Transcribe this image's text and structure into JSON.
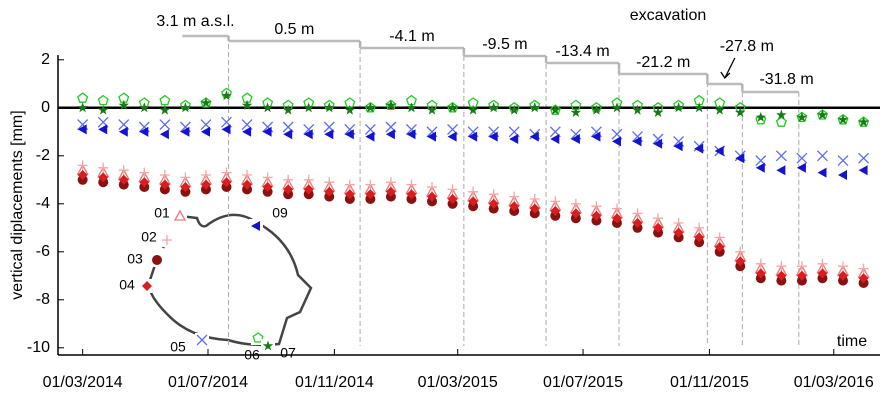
{
  "chart_data": {
    "type": "scatter",
    "x_label": "time",
    "y_label": "vertical diplacements [mm]",
    "annotation": "excavation",
    "reference_line": 0,
    "xlim": [
      "2014-02-05",
      "2016-04-15"
    ],
    "ylim": [
      -10.3,
      2.2
    ],
    "yticks": [
      2,
      0,
      -2,
      -4,
      -6,
      -8,
      -10
    ],
    "xticks": [
      {
        "value": "2014-03-01",
        "label": "01/03/2014"
      },
      {
        "value": "2014-07-01",
        "label": "01/07/2014"
      },
      {
        "value": "2014-11-01",
        "label": "01/11/2014"
      },
      {
        "value": "2015-03-01",
        "label": "01/03/2015"
      },
      {
        "value": "2015-07-01",
        "label": "01/07/2015"
      },
      {
        "value": "2015-11-01",
        "label": "01/11/2015"
      },
      {
        "value": "2016-03-01",
        "label": "01/03/2016"
      }
    ],
    "stages": [
      {
        "label": "3.1 m a.s.l.",
        "start": "2014-06-06",
        "end": "2014-07-21"
      },
      {
        "label": "0.5 m",
        "start": "2014-07-21",
        "end": "2014-11-26"
      },
      {
        "label": "-4.1 m",
        "start": "2014-11-26",
        "end": "2015-03-07"
      },
      {
        "label": "-9.5 m",
        "start": "2015-03-07",
        "end": "2015-05-26"
      },
      {
        "label": "-13.4 m",
        "start": "2015-05-26",
        "end": "2015-08-05"
      },
      {
        "label": "-21.2 m",
        "start": "2015-08-05",
        "end": "2015-10-30"
      },
      {
        "label": "-27.8 m",
        "start": "2015-10-30",
        "end": "2015-12-03"
      },
      {
        "label": "-31.8 m",
        "start": "2015-12-03",
        "end": "2016-01-27"
      }
    ],
    "x": [
      "2014-03-01",
      "2014-03-21",
      "2014-04-10",
      "2014-04-30",
      "2014-05-20",
      "2014-06-09",
      "2014-06-29",
      "2014-07-19",
      "2014-08-08",
      "2014-08-28",
      "2014-09-17",
      "2014-10-07",
      "2014-10-27",
      "2014-11-16",
      "2014-12-06",
      "2014-12-26",
      "2015-01-15",
      "2015-02-04",
      "2015-02-24",
      "2015-03-16",
      "2015-04-05",
      "2015-04-25",
      "2015-05-15",
      "2015-06-04",
      "2015-06-24",
      "2015-07-14",
      "2015-08-03",
      "2015-08-23",
      "2015-09-12",
      "2015-10-02",
      "2015-10-22",
      "2015-11-11",
      "2015-12-01",
      "2015-12-21",
      "2016-01-10",
      "2016-01-30",
      "2016-02-19",
      "2016-03-10",
      "2016-03-30"
    ],
    "series": [
      {
        "name": "01",
        "color": "#f07878",
        "marker": "triangle-open",
        "values": [
          -2.6,
          -2.7,
          -2.8,
          -2.9,
          -3.0,
          -3.1,
          -3.0,
          -2.9,
          -3.0,
          -3.1,
          -3.2,
          -3.2,
          -3.3,
          -3.4,
          -3.4,
          -3.3,
          -3.4,
          -3.5,
          -3.6,
          -3.7,
          -3.8,
          -3.9,
          -4.0,
          -4.1,
          -4.2,
          -4.3,
          -4.4,
          -4.6,
          -4.8,
          -5.0,
          -5.2,
          -5.6,
          -6.2,
          -6.7,
          -6.8,
          -6.8,
          -6.7,
          -6.8,
          -6.9
        ]
      },
      {
        "name": "02",
        "color": "#f5a5a5",
        "marker": "plus",
        "values": [
          -2.4,
          -2.5,
          -2.6,
          -2.7,
          -2.8,
          -2.9,
          -2.8,
          -2.7,
          -2.8,
          -2.9,
          -3.0,
          -3.0,
          -3.1,
          -3.2,
          -3.2,
          -3.1,
          -3.2,
          -3.3,
          -3.4,
          -3.5,
          -3.6,
          -3.7,
          -3.8,
          -3.9,
          -4.0,
          -4.1,
          -4.2,
          -4.4,
          -4.6,
          -4.8,
          -5.0,
          -5.4,
          -6.0,
          -6.5,
          -6.6,
          -6.6,
          -6.5,
          -6.6,
          -6.7
        ]
      },
      {
        "name": "03",
        "color": "#8b1010",
        "marker": "circle",
        "values": [
          -3.0,
          -3.1,
          -3.2,
          -3.3,
          -3.4,
          -3.5,
          -3.4,
          -3.3,
          -3.4,
          -3.5,
          -3.6,
          -3.6,
          -3.7,
          -3.8,
          -3.8,
          -3.7,
          -3.8,
          -3.9,
          -4.0,
          -4.1,
          -4.2,
          -4.3,
          -4.4,
          -4.5,
          -4.6,
          -4.7,
          -4.8,
          -5.0,
          -5.2,
          -5.4,
          -5.6,
          -6.0,
          -6.6,
          -7.1,
          -7.2,
          -7.2,
          -7.1,
          -7.2,
          -7.3
        ]
      },
      {
        "name": "04",
        "color": "#d81e1e",
        "marker": "diamond",
        "values": [
          -2.8,
          -2.9,
          -3.0,
          -3.1,
          -3.2,
          -3.3,
          -3.2,
          -3.1,
          -3.2,
          -3.3,
          -3.4,
          -3.4,
          -3.5,
          -3.6,
          -3.6,
          -3.5,
          -3.6,
          -3.7,
          -3.8,
          -3.9,
          -4.0,
          -4.1,
          -4.2,
          -4.3,
          -4.4,
          -4.5,
          -4.6,
          -4.8,
          -5.0,
          -5.2,
          -5.4,
          -5.8,
          -6.4,
          -6.9,
          -7.0,
          -7.0,
          -6.9,
          -7.0,
          -7.1
        ]
      },
      {
        "name": "05",
        "color": "#5a6cf0",
        "marker": "x",
        "values": [
          -0.7,
          -0.6,
          -0.7,
          -0.8,
          -0.7,
          -0.8,
          -0.7,
          -0.6,
          -0.7,
          -0.8,
          -0.8,
          -0.9,
          -0.8,
          -0.9,
          -0.9,
          -0.8,
          -0.9,
          -1.0,
          -0.9,
          -1.0,
          -1.0,
          -1.0,
          -1.1,
          -1.0,
          -1.1,
          -1.0,
          -1.1,
          -1.2,
          -1.3,
          -1.4,
          -1.6,
          -1.8,
          -2.0,
          -2.2,
          -2.0,
          -2.1,
          -2.0,
          -2.2,
          -2.1
        ]
      },
      {
        "name": "06",
        "color": "#22cc22",
        "marker": "pentagon-open",
        "values": [
          0.4,
          0.3,
          0.4,
          0.2,
          0.3,
          0.1,
          0.2,
          0.6,
          0.4,
          0.2,
          0.1,
          0.2,
          0.1,
          0.2,
          0.0,
          0.1,
          0.3,
          0.1,
          0.0,
          0.2,
          0.1,
          0.0,
          0.1,
          -0.1,
          0.1,
          0.0,
          0.2,
          0.1,
          0.0,
          0.1,
          0.3,
          0.2,
          0.0,
          -0.5,
          -0.6,
          -0.4,
          -0.3,
          -0.5,
          -0.6
        ]
      },
      {
        "name": "07",
        "color": "#1a7a1a",
        "marker": "star",
        "values": [
          0.0,
          -0.1,
          0.1,
          0.0,
          -0.1,
          0.0,
          0.2,
          0.5,
          0.1,
          0.0,
          -0.1,
          0.0,
          0.0,
          -0.1,
          0.0,
          0.1,
          0.0,
          -0.1,
          0.0,
          -0.1,
          0.0,
          -0.1,
          0.0,
          -0.1,
          -0.2,
          -0.1,
          0.0,
          -0.1,
          -0.2,
          0.0,
          0.0,
          -0.1,
          -0.2,
          -0.4,
          -0.3,
          -0.4,
          -0.3,
          -0.5,
          -0.6
        ]
      },
      {
        "name": "09",
        "color": "#1414d0",
        "marker": "triangle-left",
        "values": [
          -0.9,
          -0.9,
          -1.0,
          -1.0,
          -1.1,
          -1.0,
          -1.0,
          -0.9,
          -1.0,
          -1.0,
          -1.1,
          -1.1,
          -1.1,
          -1.1,
          -1.2,
          -1.1,
          -1.1,
          -1.2,
          -1.2,
          -1.2,
          -1.2,
          -1.3,
          -1.2,
          -1.3,
          -1.3,
          -1.2,
          -1.4,
          -1.4,
          -1.5,
          -1.6,
          -1.7,
          -1.8,
          -2.1,
          -2.5,
          -2.6,
          -2.5,
          -2.7,
          -2.8,
          -2.6
        ]
      }
    ]
  }
}
